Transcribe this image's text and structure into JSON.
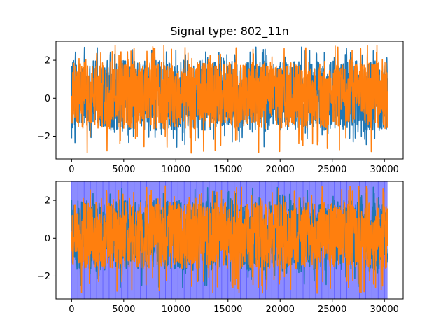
{
  "chart_data": [
    {
      "type": "line",
      "title": "Signal type: 802_11n",
      "xlabel": "",
      "ylabel": "",
      "xlim": [
        -1500,
        31800
      ],
      "ylim": [
        -3.2,
        3.0
      ],
      "xticks": [
        0,
        5000,
        10000,
        15000,
        20000,
        25000,
        30000
      ],
      "yticks": [
        -2,
        0,
        2
      ],
      "grid": false,
      "n_samples": 30300,
      "series": [
        {
          "color": "#1f77b4",
          "amplitude_range": [
            -2.6,
            2.7
          ],
          "typical_envelope": [
            -1.7,
            2.0
          ]
        },
        {
          "color": "#ff7f0e",
          "amplitude_range": [
            -2.9,
            2.8
          ],
          "typical_envelope": [
            -1.6,
            1.9
          ]
        }
      ]
    },
    {
      "type": "line",
      "title": "",
      "xlabel": "",
      "ylabel": "",
      "xlim": [
        -1500,
        31800
      ],
      "ylim": [
        -3.2,
        3.0
      ],
      "xticks": [
        0,
        5000,
        10000,
        15000,
        20000,
        25000,
        30000
      ],
      "yticks": [
        -2,
        0,
        2
      ],
      "grid": false,
      "n_samples": 30300,
      "shaded_span": {
        "x_start": 0,
        "x_end": 30300,
        "color": "#0000ff",
        "opacity": 0.45
      },
      "series": [
        {
          "color": "#1f77b4",
          "amplitude_range": [
            -2.6,
            2.7
          ],
          "typical_envelope": [
            -1.7,
            2.0
          ]
        },
        {
          "color": "#ff7f0e",
          "amplitude_range": [
            -2.9,
            2.8
          ],
          "typical_envelope": [
            -1.6,
            1.9
          ]
        }
      ]
    }
  ]
}
